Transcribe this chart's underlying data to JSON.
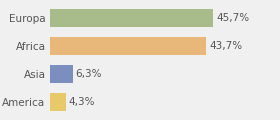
{
  "categories": [
    "Europa",
    "Africa",
    "Asia",
    "America"
  ],
  "values": [
    45.7,
    43.7,
    6.3,
    4.3
  ],
  "labels": [
    "45,7%",
    "43,7%",
    "6,3%",
    "4,3%"
  ],
  "bar_colors": [
    "#a8bb8a",
    "#e8b87a",
    "#7b8fbf",
    "#e8c96a"
  ],
  "background_color": "#f0f0f0",
  "xlim": [
    0,
    62
  ],
  "bar_height": 0.65,
  "label_fontsize": 7.5,
  "tick_fontsize": 7.5,
  "label_color": "#555555",
  "tick_color": "#555555"
}
